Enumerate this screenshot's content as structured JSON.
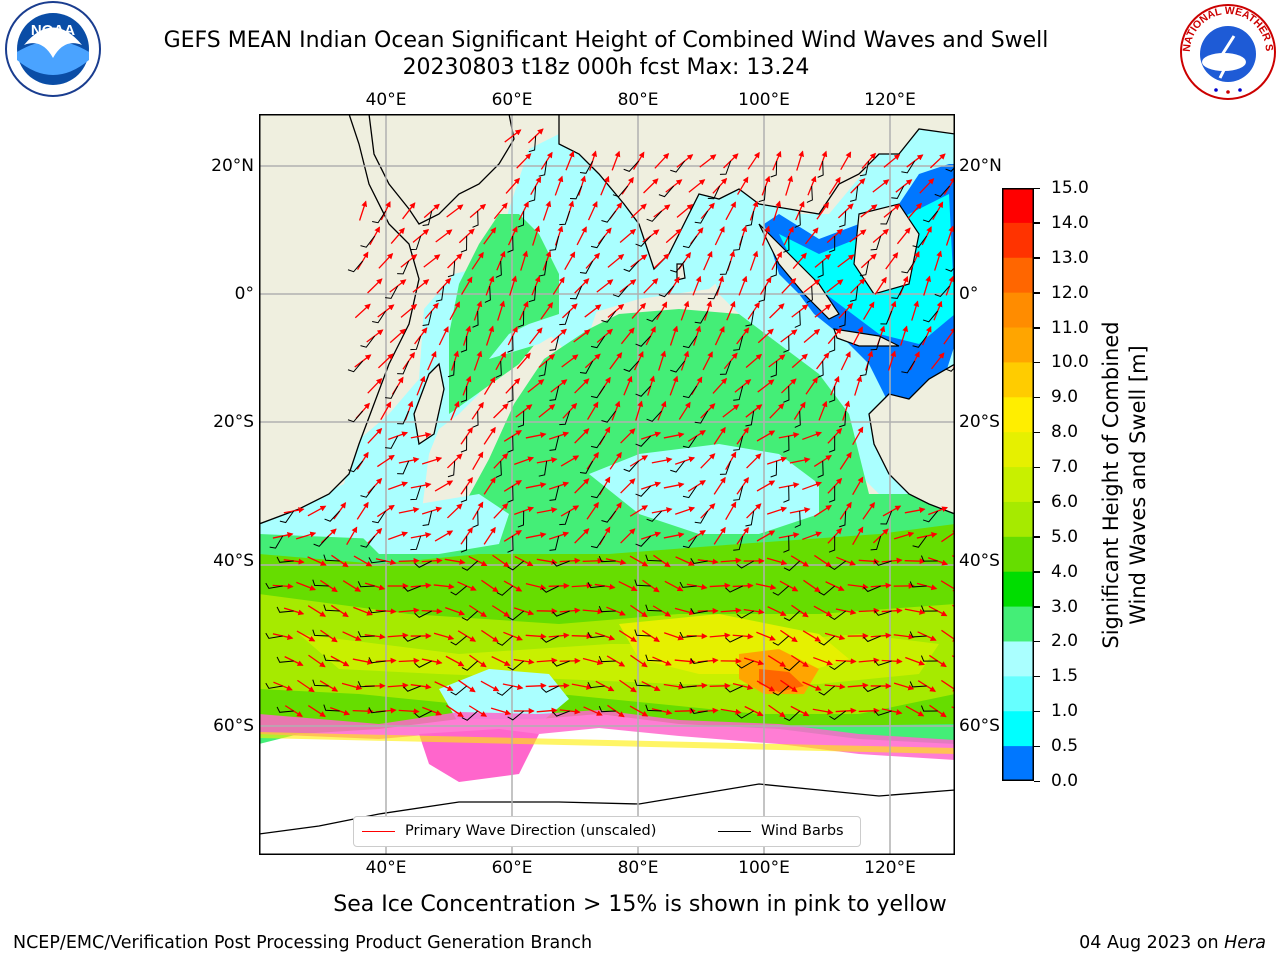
{
  "title": {
    "line1": "GEFS MEAN Indian Ocean Significant Height of Combined Wind Waves and Swell",
    "line2": "20230803 t18z 000h fcst   Max: 13.24"
  },
  "axes": {
    "lon_ticks": [
      "40°E",
      "60°E",
      "80°E",
      "100°E",
      "120°E"
    ],
    "lat_ticks": [
      "20°N",
      "0°",
      "20°S",
      "40°S",
      "60°S"
    ]
  },
  "legend": {
    "primary_wave": "Primary Wave Direction (unscaled)",
    "wind_barbs": "Wind Barbs"
  },
  "colorbar": {
    "title_line1": "Significant Height of Combined",
    "title_line2": "Wind Waves and Swell [m]",
    "labels": [
      "15.0",
      "14.0",
      "13.0",
      "12.0",
      "11.0",
      "10.0",
      "9.0",
      "8.0",
      "7.0",
      "6.0",
      "5.0",
      "4.0",
      "3.0",
      "2.0",
      "1.5",
      "1.0",
      "0.5",
      "0.0"
    ],
    "colors": [
      "#ff0000",
      "#ff3300",
      "#ff6600",
      "#ff8c00",
      "#ffa500",
      "#ffcc00",
      "#ffee00",
      "#e6f000",
      "#c8f000",
      "#a6ea00",
      "#66dd00",
      "#00dd00",
      "#44ee77",
      "#aaffff",
      "#66ffff",
      "#00ffff",
      "#0077ff",
      "#0000ff"
    ]
  },
  "caption": "Sea Ice Concentration > 15% is shown in pink to yellow",
  "footer": {
    "left": "NCEP/EMC/Verification Post Processing Product Generation Branch",
    "date": "04 Aug 2023 on ",
    "machine": "Hera"
  },
  "logos": {
    "noaa_text": "NOAA",
    "nws_text": "NATIONAL WEATHER SERVICE"
  },
  "colors": {
    "land": "#efefdf",
    "wave_arrow": "#ff0000",
    "wind_barb": "#000000",
    "ice": "#ff66cc"
  }
}
